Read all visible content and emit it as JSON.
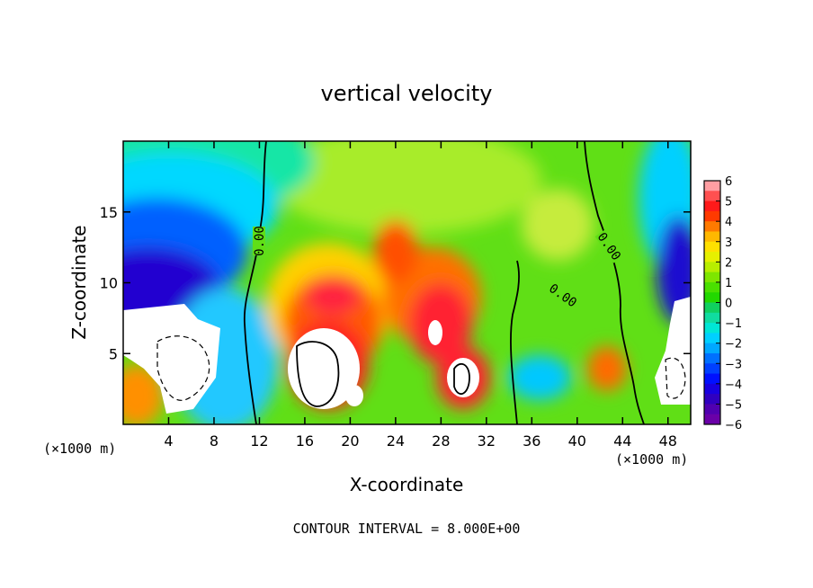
{
  "chart_data": {
    "type": "heatmap",
    "title": "vertical velocity",
    "xlabel": "X-coordinate",
    "ylabel": "Z-coordinate",
    "x_unit_label": "(×1000 m)",
    "x_ticks": [
      "4",
      "8",
      "12",
      "16",
      "20",
      "24",
      "28",
      "32",
      "36",
      "40",
      "44",
      "48"
    ],
    "y_ticks": [
      "5",
      "10",
      "15"
    ],
    "xlim": [
      0,
      50
    ],
    "ylim": [
      0,
      20
    ],
    "colorbar": {
      "labels": [
        "6",
        "5",
        "4",
        "3",
        "2",
        "1",
        "0",
        "−1",
        "−2",
        "−3",
        "−4",
        "−5",
        "−6"
      ],
      "range": [
        -6,
        6
      ]
    },
    "contour_labels": [
      "0.00",
      "0.00",
      "0.00"
    ],
    "footer": "CONTOUR INTERVAL = 8.000E+00",
    "colors": {
      "background_field": "#5ee014",
      "white_cores": "#ffffff",
      "strong_negative": "#1a00c8"
    }
  }
}
